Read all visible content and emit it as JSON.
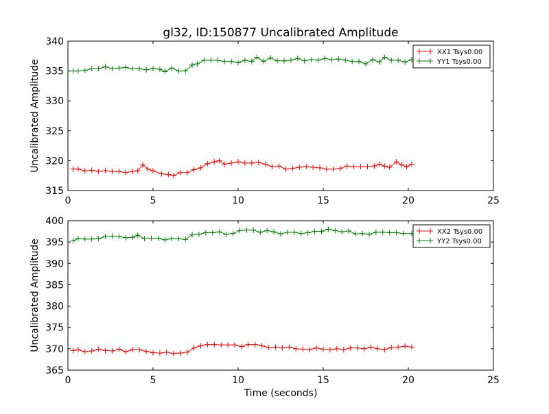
{
  "chart_data": [
    {
      "type": "line",
      "title": "gl32, ID:150877 Uncalibrated Amplitude",
      "xlabel": "",
      "ylabel": "Uncalibrated Amplitude",
      "xlim": [
        0,
        25
      ],
      "ylim": [
        315,
        340
      ],
      "xticks": [
        0,
        5,
        10,
        15,
        20,
        25
      ],
      "yticks": [
        315,
        320,
        325,
        330,
        335,
        340
      ],
      "grid": false,
      "legend_position": "top-right",
      "series": [
        {
          "name": "XX1 Tsys0.00",
          "color": "#ff0000",
          "x": [
            0.3,
            0.6,
            1.0,
            1.4,
            1.8,
            2.2,
            2.6,
            3.0,
            3.4,
            3.8,
            4.1,
            4.4,
            4.7,
            5.0,
            5.5,
            5.9,
            6.2,
            6.6,
            7.0,
            7.4,
            7.8,
            8.2,
            8.6,
            8.9,
            9.2,
            9.6,
            10.0,
            10.4,
            10.8,
            11.2,
            11.6,
            12.0,
            12.4,
            12.8,
            13.2,
            13.6,
            14.0,
            14.4,
            14.8,
            15.2,
            15.6,
            16.0,
            16.4,
            16.8,
            17.2,
            17.6,
            18.0,
            18.3,
            18.6,
            18.9,
            19.3,
            19.6,
            19.9,
            20.2
          ],
          "y": [
            318.6,
            318.6,
            318.3,
            318.4,
            318.2,
            318.3,
            318.2,
            318.2,
            318.0,
            318.2,
            318.3,
            319.3,
            318.6,
            318.3,
            317.8,
            317.7,
            317.5,
            318.0,
            318.0,
            318.5,
            318.8,
            319.5,
            319.8,
            320.0,
            319.4,
            319.6,
            319.8,
            319.6,
            319.6,
            319.7,
            319.4,
            319.0,
            319.1,
            318.6,
            318.7,
            318.9,
            319.0,
            318.9,
            318.8,
            318.6,
            318.6,
            318.7,
            319.1,
            319.0,
            319.0,
            319.0,
            319.1,
            319.4,
            319.1,
            318.9,
            319.8,
            319.3,
            319.0,
            319.4
          ]
        },
        {
          "name": "YY1 Tsys0.00",
          "color": "#008000",
          "x": [
            0.3,
            0.6,
            1.0,
            1.4,
            1.8,
            2.2,
            2.6,
            3.0,
            3.4,
            3.8,
            4.2,
            4.6,
            5.0,
            5.4,
            5.7,
            6.1,
            6.5,
            6.9,
            7.3,
            7.6,
            8.0,
            8.4,
            8.8,
            9.2,
            9.6,
            10.0,
            10.4,
            10.8,
            11.1,
            11.5,
            11.9,
            12.3,
            12.7,
            13.1,
            13.5,
            13.9,
            14.3,
            14.7,
            15.1,
            15.5,
            15.9,
            16.3,
            16.7,
            17.1,
            17.5,
            17.9,
            18.3,
            18.6,
            19.0,
            19.4,
            19.8,
            20.2
          ],
          "y": [
            335.0,
            335.0,
            335.1,
            335.4,
            335.4,
            335.7,
            335.4,
            335.5,
            335.6,
            335.4,
            335.4,
            335.2,
            335.4,
            335.3,
            334.9,
            335.5,
            335.0,
            335.0,
            336.0,
            336.2,
            336.8,
            336.8,
            336.8,
            336.6,
            336.6,
            336.4,
            336.8,
            336.6,
            337.3,
            336.6,
            337.2,
            336.7,
            336.7,
            336.8,
            337.1,
            336.7,
            336.9,
            336.8,
            337.1,
            336.9,
            337.0,
            336.8,
            336.6,
            336.6,
            336.2,
            336.9,
            336.5,
            337.3,
            336.8,
            336.8,
            336.5,
            336.9
          ]
        }
      ]
    },
    {
      "type": "line",
      "title": "",
      "xlabel": "Time (seconds)",
      "ylabel": "Uncalibrated Amplitude",
      "xlim": [
        0,
        25
      ],
      "ylim": [
        365,
        400
      ],
      "xticks": [
        0,
        5,
        10,
        15,
        20,
        25
      ],
      "yticks": [
        365,
        370,
        375,
        380,
        385,
        390,
        395,
        400
      ],
      "grid": false,
      "legend_position": "top-right",
      "series": [
        {
          "name": "XX2 Tsys0.00",
          "color": "#ff0000",
          "x": [
            0.3,
            0.6,
            1.0,
            1.4,
            1.8,
            2.2,
            2.6,
            3.0,
            3.4,
            3.8,
            4.2,
            4.6,
            5.0,
            5.4,
            5.8,
            6.2,
            6.6,
            7.0,
            7.4,
            7.8,
            8.2,
            8.6,
            9.0,
            9.4,
            9.8,
            10.2,
            10.6,
            11.0,
            11.4,
            11.8,
            12.2,
            12.6,
            13.0,
            13.4,
            13.8,
            14.2,
            14.6,
            15.0,
            15.4,
            15.8,
            16.2,
            16.6,
            17.0,
            17.4,
            17.8,
            18.2,
            18.6,
            19.0,
            19.4,
            19.8,
            20.2
          ],
          "y": [
            369.6,
            369.8,
            369.3,
            369.5,
            369.9,
            369.6,
            369.5,
            369.9,
            369.3,
            369.8,
            369.8,
            369.4,
            369.1,
            369.0,
            369.2,
            368.9,
            369.0,
            369.2,
            370.2,
            370.7,
            371.0,
            371.0,
            370.9,
            370.9,
            370.9,
            370.5,
            371.0,
            371.0,
            370.7,
            370.3,
            370.4,
            370.2,
            370.4,
            370.0,
            369.9,
            369.8,
            370.2,
            369.9,
            369.8,
            370.0,
            369.8,
            370.2,
            370.2,
            370.0,
            370.4,
            370.0,
            369.8,
            370.3,
            370.4,
            370.6,
            370.4
          ]
        },
        {
          "name": "YY2 Tsys0.00",
          "color": "#008000",
          "x": [
            0.3,
            0.6,
            1.0,
            1.4,
            1.8,
            2.2,
            2.6,
            3.0,
            3.4,
            3.8,
            4.1,
            4.5,
            4.9,
            5.3,
            5.7,
            6.1,
            6.5,
            6.9,
            7.3,
            7.7,
            8.1,
            8.5,
            8.9,
            9.3,
            9.7,
            10.1,
            10.5,
            10.9,
            11.3,
            11.7,
            12.1,
            12.5,
            12.9,
            13.3,
            13.7,
            14.1,
            14.5,
            14.9,
            15.3,
            15.7,
            16.1,
            16.5,
            16.9,
            17.3,
            17.7,
            18.1,
            18.5,
            18.9,
            19.3,
            19.7,
            20.2
          ],
          "y": [
            395.3,
            395.8,
            395.7,
            395.7,
            395.8,
            396.3,
            396.4,
            396.3,
            396.0,
            396.1,
            396.6,
            395.8,
            395.9,
            395.9,
            395.5,
            395.8,
            395.8,
            395.6,
            396.7,
            396.8,
            397.2,
            397.2,
            397.4,
            396.8,
            397.0,
            397.7,
            397.8,
            397.8,
            397.3,
            397.7,
            397.4,
            396.9,
            397.3,
            397.3,
            397.0,
            397.2,
            397.5,
            397.5,
            398.0,
            397.7,
            397.4,
            397.6,
            396.9,
            397.0,
            396.8,
            397.3,
            397.3,
            397.2,
            397.2,
            397.0,
            397.0
          ]
        }
      ]
    }
  ]
}
